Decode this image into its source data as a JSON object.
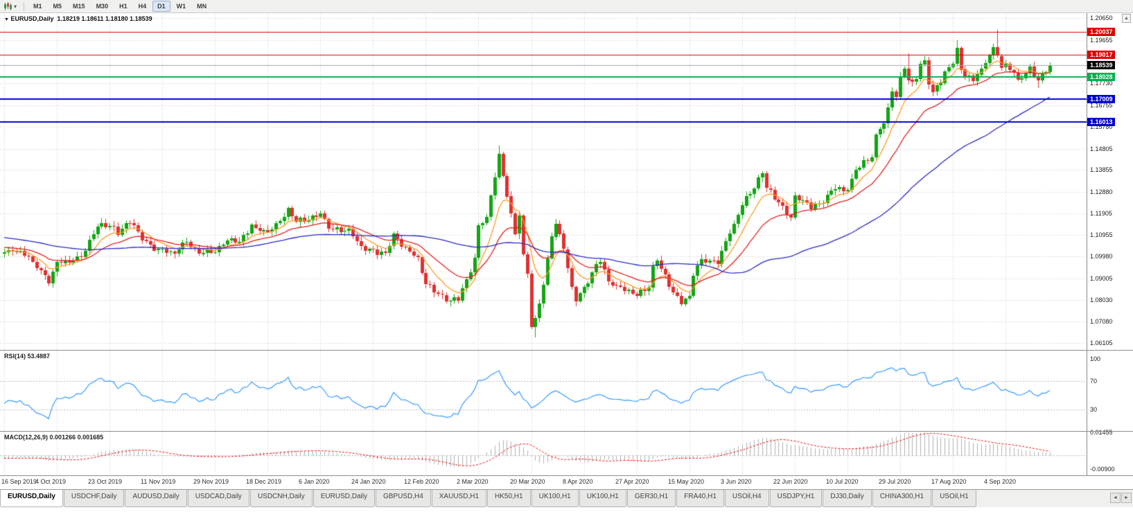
{
  "toolbar": {
    "periods": [
      "M1",
      "M5",
      "M15",
      "M30",
      "H1",
      "H4",
      "D1",
      "W1",
      "MN"
    ],
    "active_period": "D1",
    "dropdown_glyph": "▾"
  },
  "info_line": {
    "marker": "▼",
    "symbol": "EURUSD,Daily",
    "ohlc": "1.18219 1.18611 1.18180 1.18539"
  },
  "indicators": {
    "rsi": {
      "name": "RSI(14)",
      "value": "53.4887"
    },
    "macd": {
      "name": "MACD(12,26,9)",
      "values": "0.001266 0.001685"
    }
  },
  "icons": {
    "scroll_up": "▲",
    "tab_left": "◄",
    "tab_right": "►"
  },
  "tabs": {
    "active_index": 0,
    "items": [
      "EURUSD,Daily",
      "USDCHF,Daily",
      "AUDUSD,Daily",
      "USDCAD,Daily",
      "USDCNH,Daily",
      "EURUSD,Daily",
      "GBPUSD,H4",
      "XAUUSD,H1",
      "HK50,H1",
      "UK100,H1",
      "UK100,H1",
      "GER30,H1",
      "FRA40,H1",
      "USOil,H4",
      "USDJPY,H1",
      "DJ30,Daily",
      "CHINA300,H1",
      "USOil,H1"
    ]
  },
  "chart_data": {
    "type": "candlestick",
    "symbol": "EURUSD",
    "period": "Daily",
    "n": 259,
    "y_range": [
      1.058,
      1.209
    ],
    "y_axis_ticks": [
      "1.20650",
      "1.19655",
      "1.17730",
      "1.16755",
      "1.15780",
      "1.14805",
      "1.13855",
      "1.12880",
      "1.11905",
      "1.10955",
      "1.09980",
      "1.09005",
      "1.08030",
      "1.07080",
      "1.06105"
    ],
    "x_ticks": [
      {
        "i": 0,
        "label": "16 Sep 2019"
      },
      {
        "i": 13,
        "label": "4 Oct 2019"
      },
      {
        "i": 26,
        "label": "23 Oct 2019"
      },
      {
        "i": 39,
        "label": "11 Nov 2019"
      },
      {
        "i": 52,
        "label": "29 Nov 2019"
      },
      {
        "i": 65,
        "label": "18 Dec 2019"
      },
      {
        "i": 78,
        "label": "6 Jan 2020"
      },
      {
        "i": 91,
        "label": "24 Jan 2020"
      },
      {
        "i": 104,
        "label": "12 Feb 2020"
      },
      {
        "i": 117,
        "label": "2 Mar 2020"
      },
      {
        "i": 130,
        "label": "20 Mar 2020"
      },
      {
        "i": 143,
        "label": "8 Apr 2020"
      },
      {
        "i": 156,
        "label": "27 Apr 2020"
      },
      {
        "i": 169,
        "label": "15 May 2020"
      },
      {
        "i": 182,
        "label": "3 Jun 2020"
      },
      {
        "i": 195,
        "label": "22 Jun 2020"
      },
      {
        "i": 208,
        "label": "10 Jul 2020"
      },
      {
        "i": 221,
        "label": "29 Jul 2020"
      },
      {
        "i": 234,
        "label": "17 Aug 2020"
      },
      {
        "i": 247,
        "label": "4 Sep 2020"
      }
    ],
    "h_lines": [
      {
        "value": 1.20037,
        "label": "1.20037",
        "color": "#dd0000",
        "width": 1
      },
      {
        "value": 1.19017,
        "label": "1.19017",
        "color": "#dd0000",
        "width": 1
      },
      {
        "value": 1.18028,
        "label": "1.18028",
        "color": "#00b050",
        "width": 2
      },
      {
        "value": 1.17009,
        "label": "1.17009",
        "color": "#0000cc",
        "width": 2
      },
      {
        "value": 1.16013,
        "label": "1.16013",
        "color": "#0000cc",
        "width": 2
      }
    ],
    "bid_line": {
      "value": 1.18539,
      "label": "1.18539",
      "line_color": "#a8a8a8",
      "box_color": "#000000"
    },
    "candle_up_color": "#13a513",
    "candle_down_color": "#e03131",
    "ma_lines": [
      {
        "period": 8,
        "method": "ema",
        "color": "#ff9c1f"
      },
      {
        "period": 20,
        "method": "ema",
        "color": "#e02020"
      },
      {
        "period": 55,
        "method": "sma",
        "color": "#2929c8"
      }
    ],
    "rsi": {
      "period": 14,
      "color": "#3399ff",
      "range": [
        0,
        112
      ],
      "level_lines": [
        70,
        30
      ],
      "axis_ticks": [
        {
          "v": 100,
          "label": "100"
        },
        {
          "v": 70,
          "label": "70"
        },
        {
          "v": 30,
          "label": "30"
        }
      ]
    },
    "macd": {
      "fast": 12,
      "slow": 26,
      "signal": 9,
      "hist_color": "#b0b0b0",
      "signal_color": "#ee1111",
      "range": [
        -0.0128,
        0.0152
      ],
      "axis_ticks": [
        {
          "v": 0.01455,
          "label": "0.01455"
        },
        {
          "v": -0.009,
          "label": "-0.00900"
        }
      ]
    },
    "warmup_waypoints": [
      [
        -60,
        1.1185
      ],
      [
        -45,
        1.1128
      ],
      [
        -30,
        1.1078
      ],
      [
        -15,
        1.1072
      ],
      [
        -8,
        1.1035
      ],
      [
        -1,
        1.1008
      ]
    ],
    "close_waypoints": [
      [
        0,
        1.1005
      ],
      [
        2,
        1.103
      ],
      [
        5,
        1.1015
      ],
      [
        8,
        1.095
      ],
      [
        11,
        1.089
      ],
      [
        13,
        1.0979
      ],
      [
        16,
        1.097
      ],
      [
        19,
        1.1
      ],
      [
        23,
        1.114
      ],
      [
        26,
        1.1131
      ],
      [
        28,
        1.1105
      ],
      [
        31,
        1.116
      ],
      [
        34,
        1.107
      ],
      [
        37,
        1.104
      ],
      [
        39,
        1.1033
      ],
      [
        42,
        1.1005
      ],
      [
        45,
        1.107
      ],
      [
        48,
        1.102
      ],
      [
        52,
        1.1018
      ],
      [
        55,
        1.108
      ],
      [
        58,
        1.106
      ],
      [
        61,
        1.113
      ],
      [
        65,
        1.1112
      ],
      [
        68,
        1.1145
      ],
      [
        70,
        1.12
      ],
      [
        72,
        1.117
      ],
      [
        75,
        1.116
      ],
      [
        78,
        1.119
      ],
      [
        80,
        1.113
      ],
      [
        83,
        1.112
      ],
      [
        86,
        1.1095
      ],
      [
        88,
        1.1035
      ],
      [
        91,
        1.1025
      ],
      [
        94,
        1.1
      ],
      [
        96,
        1.109
      ],
      [
        99,
        1.104
      ],
      [
        102,
        1.098
      ],
      [
        104,
        1.0873
      ],
      [
        107,
        1.084
      ],
      [
        110,
        1.0795
      ],
      [
        112,
        1.0805
      ],
      [
        114,
        1.089
      ],
      [
        116,
        1.099
      ],
      [
        117,
        1.1134
      ],
      [
        119,
        1.117
      ],
      [
        122,
        1.145
      ],
      [
        124,
        1.128
      ],
      [
        126,
        1.1105
      ],
      [
        127,
        1.118
      ],
      [
        128,
        1.0995
      ],
      [
        129,
        1.0915
      ],
      [
        130,
        1.0689
      ],
      [
        131,
        1.072
      ],
      [
        133,
        1.088
      ],
      [
        135,
        1.109
      ],
      [
        136,
        1.114
      ],
      [
        138,
        1.103
      ],
      [
        140,
        1.086
      ],
      [
        141,
        1.0808
      ],
      [
        143,
        1.0857
      ],
      [
        147,
        1.098
      ],
      [
        149,
        1.089
      ],
      [
        152,
        1.086
      ],
      [
        155,
        1.0823
      ],
      [
        156,
        1.0826
      ],
      [
        159,
        1.087
      ],
      [
        160,
        1.0955
      ],
      [
        161,
        1.098
      ],
      [
        163,
        1.09
      ],
      [
        165,
        1.0834
      ],
      [
        167,
        1.0805
      ],
      [
        169,
        1.082
      ],
      [
        170,
        1.0915
      ],
      [
        172,
        1.098
      ],
      [
        176,
        1.0982
      ],
      [
        179,
        1.1101
      ],
      [
        180,
        1.1134
      ],
      [
        182,
        1.1234
      ],
      [
        184,
        1.129
      ],
      [
        187,
        1.1374
      ],
      [
        188,
        1.1297
      ],
      [
        191,
        1.124
      ],
      [
        194,
        1.1176
      ],
      [
        195,
        1.126
      ],
      [
        199,
        1.1218
      ],
      [
        201,
        1.1234
      ],
      [
        205,
        1.1308
      ],
      [
        207,
        1.1283
      ],
      [
        208,
        1.13
      ],
      [
        210,
        1.1395
      ],
      [
        211,
        1.1411
      ],
      [
        213,
        1.143
      ],
      [
        214,
        1.1445
      ],
      [
        215,
        1.1525
      ],
      [
        216,
        1.157
      ],
      [
        217,
        1.1598
      ],
      [
        218,
        1.1656
      ],
      [
        219,
        1.1752
      ],
      [
        220,
        1.1716
      ],
      [
        221,
        1.179
      ],
      [
        222,
        1.1846
      ],
      [
        223,
        1.1776
      ],
      [
        224,
        1.1762
      ],
      [
        225,
        1.1802
      ],
      [
        226,
        1.1862
      ],
      [
        227,
        1.1878
      ],
      [
        228,
        1.1787
      ],
      [
        229,
        1.1738
      ],
      [
        231,
        1.1784
      ],
      [
        233,
        1.1842
      ],
      [
        234,
        1.1872
      ],
      [
        235,
        1.1934
      ],
      [
        236,
        1.1839
      ],
      [
        238,
        1.1795
      ],
      [
        239,
        1.1786
      ],
      [
        241,
        1.1831
      ],
      [
        243,
        1.1903
      ],
      [
        244,
        1.1936
      ],
      [
        245,
        1.1911
      ],
      [
        246,
        1.1854
      ],
      [
        248,
        1.1838
      ],
      [
        249,
        1.1814
      ],
      [
        250,
        1.1779
      ],
      [
        251,
        1.1801
      ],
      [
        252,
        1.1814
      ],
      [
        253,
        1.1845
      ],
      [
        255,
        1.179
      ],
      [
        256,
        1.181
      ],
      [
        257,
        1.183
      ],
      [
        258,
        1.18539
      ]
    ],
    "wick_events": {
      "highs": [
        [
          122,
          1.1495
        ],
        [
          223,
          1.1908
        ],
        [
          235,
          1.1966
        ],
        [
          245,
          1.2011
        ]
      ],
      "lows": [
        [
          11,
          1.0879
        ],
        [
          42,
          1.0989
        ],
        [
          110,
          1.0778
        ],
        [
          131,
          1.0635
        ],
        [
          255,
          1.1752
        ]
      ]
    }
  }
}
